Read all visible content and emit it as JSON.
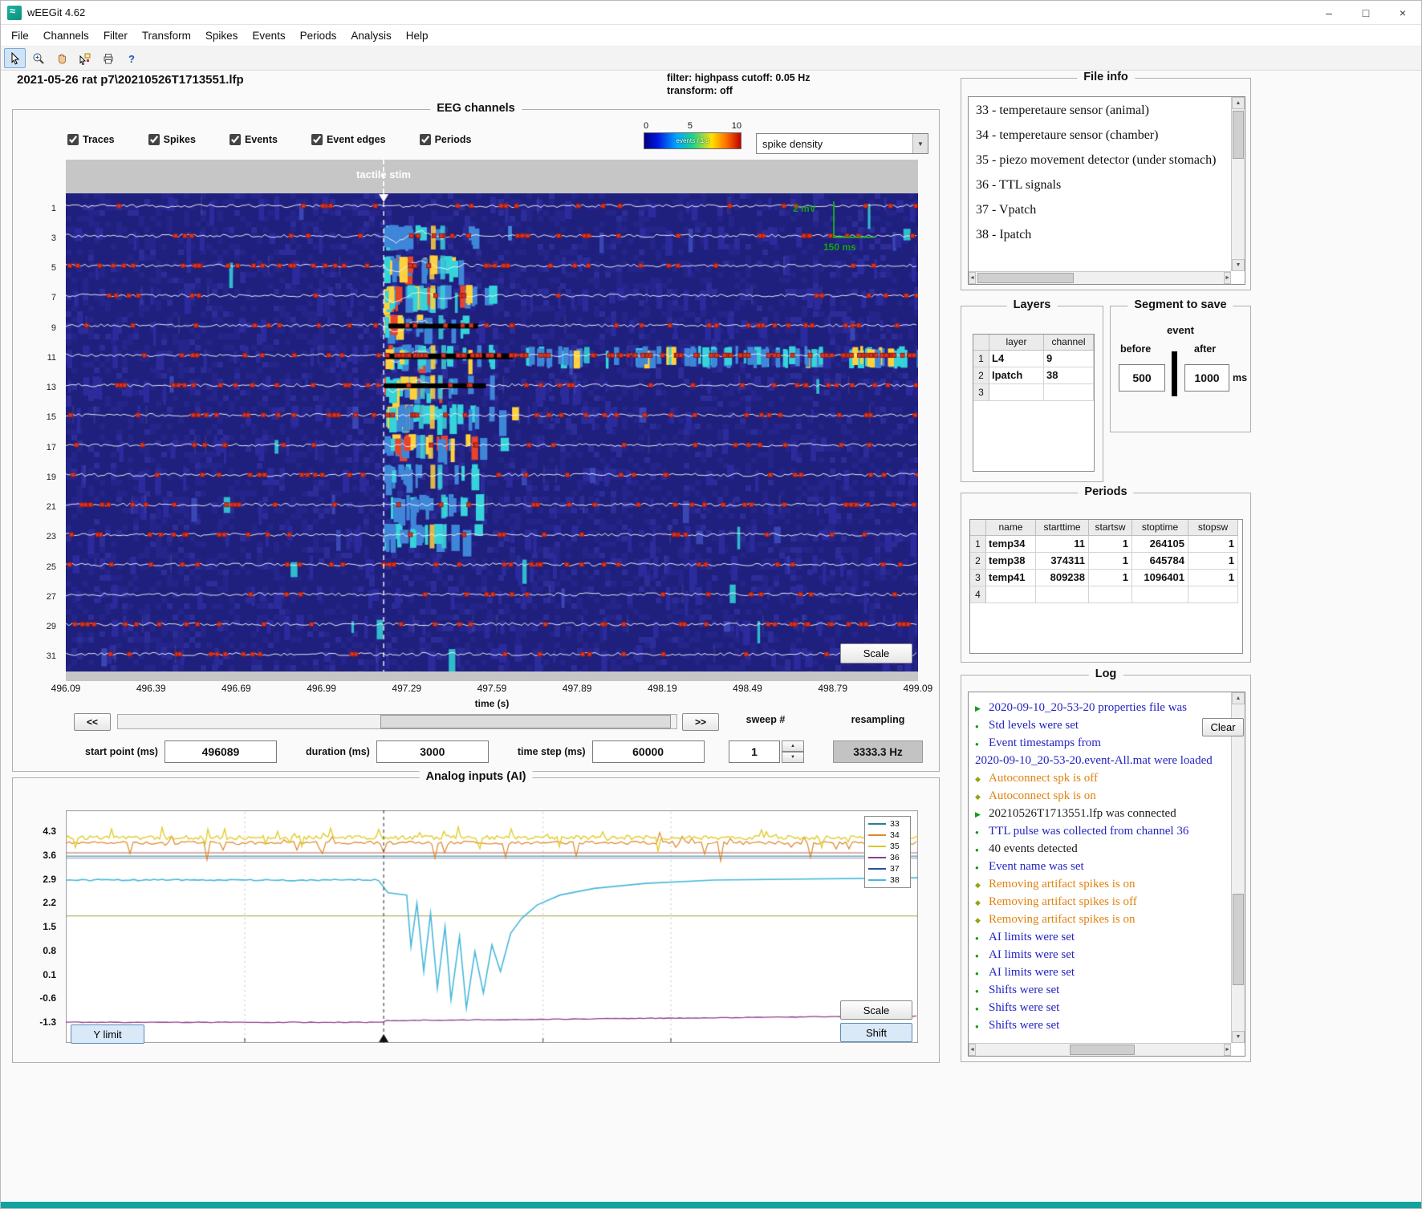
{
  "titlebar": {
    "title": "wEEGit 4.62",
    "minimize": "–",
    "maximize": "□",
    "close": "×"
  },
  "menubar": {
    "items": [
      "File",
      "Channels",
      "Filter",
      "Transform",
      "Spikes",
      "Events",
      "Periods",
      "Analysis",
      "Help"
    ]
  },
  "toolbar": {
    "icons": [
      "cursor-icon",
      "zoom-in-icon",
      "hand-icon",
      "datatip-icon",
      "print-icon",
      "help-icon"
    ]
  },
  "eeg": {
    "panel_title": "EEG channels",
    "file_label": "2021-05-26 rat p7\\20210526T1713551.lfp",
    "filter_line1": "filter: highpass cutoff: 0.05 Hz",
    "filter_line2": "transform: off",
    "checkboxes": [
      {
        "label": "Traces",
        "checked": true
      },
      {
        "label": "Spikes",
        "checked": true
      },
      {
        "label": "Events",
        "checked": true
      },
      {
        "label": "Event edges",
        "checked": true
      },
      {
        "label": "Periods",
        "checked": true
      }
    ],
    "colorbar": {
      "ticks": [
        "0",
        "5",
        "10"
      ],
      "label": "events / 1 s"
    },
    "display_mode": "spike density",
    "stim_label": "tactile stim",
    "scalebar": {
      "voltage": "2 mV",
      "time": "150 ms"
    },
    "channels": [
      "1",
      "3",
      "5",
      "7",
      "9",
      "11",
      "13",
      "15",
      "17",
      "19",
      "21",
      "23",
      "25",
      "27",
      "29",
      "31"
    ],
    "time_ticks": [
      "496.09",
      "496.39",
      "496.69",
      "496.99",
      "497.29",
      "497.59",
      "497.89",
      "498.19",
      "498.49",
      "498.79",
      "499.09"
    ],
    "time_label": "time (s)",
    "scale_button": "Scale",
    "nav_left": "<<",
    "nav_right": ">>",
    "sweep_label": "sweep #",
    "resampling_label": "resampling",
    "fields": [
      {
        "label": "start point (ms)",
        "value": "496089"
      },
      {
        "label": "duration (ms)",
        "value": "3000"
      },
      {
        "label": "time step (ms)",
        "value": "60000"
      }
    ],
    "sweep_value": "1",
    "resampling_value": "3333.3 Hz"
  },
  "ai": {
    "panel_title": "Analog inputs (AI)",
    "y_ticks": [
      "4.3",
      "3.6",
      "2.9",
      "2.2",
      "1.5",
      "0.8",
      "0.1",
      "-0.6",
      "-1.3"
    ],
    "legend": [
      {
        "label": "33",
        "color": "#2d7f8c"
      },
      {
        "label": "34",
        "color": "#e0872a"
      },
      {
        "label": "35",
        "color": "#ddc72c"
      },
      {
        "label": "36",
        "color": "#8c3d8c"
      },
      {
        "label": "37",
        "color": "#2c4fa0"
      },
      {
        "label": "38",
        "color": "#49b8dc"
      }
    ],
    "y_limit_button": "Y limit",
    "scale_button": "Scale",
    "shift_button": "Shift"
  },
  "file_info": {
    "panel_title": "File info",
    "items": [
      "33 - temperetaure sensor (animal)",
      "34 - temperetaure sensor (chamber)",
      "35 - piezo movement detector (under stomach)",
      "36 - TTL signals",
      "37 - Vpatch",
      "38 - Ipatch"
    ]
  },
  "layers": {
    "panel_title": "Layers",
    "headers": [
      "layer",
      "channel"
    ],
    "rows": [
      {
        "n": "1",
        "layer": "L4",
        "channel": "9"
      },
      {
        "n": "2",
        "layer": "Ipatch",
        "channel": "38"
      },
      {
        "n": "3",
        "layer": "",
        "channel": ""
      }
    ]
  },
  "segment": {
    "panel_title": "Segment to save",
    "event_label": "event",
    "before_label": "before",
    "after_label": "after",
    "before_value": "500",
    "after_value": "1000",
    "ms_label": "ms"
  },
  "periods": {
    "panel_title": "Periods",
    "headers": [
      "name",
      "starttime",
      "startsw",
      "stoptime",
      "stopsw"
    ],
    "rows": [
      {
        "n": "1",
        "name": "temp34",
        "starttime": "11",
        "startsw": "1",
        "stoptime": "264105",
        "stopsw": "1"
      },
      {
        "n": "2",
        "name": "temp38",
        "starttime": "374311",
        "startsw": "1",
        "stoptime": "645784",
        "stopsw": "1"
      },
      {
        "n": "3",
        "name": "temp41",
        "starttime": "809238",
        "startsw": "1",
        "stoptime": "1096401",
        "stopsw": "1"
      },
      {
        "n": "4",
        "name": "",
        "starttime": "",
        "startsw": "",
        "stoptime": "",
        "stopsw": ""
      }
    ]
  },
  "log": {
    "panel_title": "Log",
    "clear_button": "Clear",
    "entries": [
      {
        "icon": "play",
        "color": "blue",
        "text": "2020-09-10_20-53-20 properties file was"
      },
      {
        "icon": "dot",
        "color": "blue",
        "text": "Std levels were set"
      },
      {
        "icon": "dot",
        "color": "blue",
        "text": "Event timestamps from"
      },
      {
        "icon": "none",
        "color": "blue",
        "text": "2020-09-10_20-53-20.event-All.mat were loaded"
      },
      {
        "icon": "diamond",
        "color": "orange",
        "text": "Autoconnect spk is off"
      },
      {
        "icon": "diamond",
        "color": "orange",
        "text": "Autoconnect spk is on"
      },
      {
        "icon": "play",
        "color": "black",
        "text": "20210526T1713551.lfp was connected"
      },
      {
        "icon": "dot",
        "color": "blue",
        "text": "TTL pulse was collected from channel 36"
      },
      {
        "icon": "dot",
        "color": "black",
        "text": "40 events detected"
      },
      {
        "icon": "dot",
        "color": "blue",
        "text": "Event name was set"
      },
      {
        "icon": "diamond",
        "color": "orange",
        "text": "Removing artifact spikes is on"
      },
      {
        "icon": "diamond",
        "color": "orange",
        "text": "Removing artifact spikes is off"
      },
      {
        "icon": "diamond",
        "color": "orange",
        "text": "Removing artifact spikes is on"
      },
      {
        "icon": "dot",
        "color": "blue",
        "text": "AI limits were set"
      },
      {
        "icon": "dot",
        "color": "blue",
        "text": "AI limits were set"
      },
      {
        "icon": "dot",
        "color": "blue",
        "text": "AI limits were set"
      },
      {
        "icon": "dot",
        "color": "blue",
        "text": "Shifts were set"
      },
      {
        "icon": "dot",
        "color": "blue",
        "text": "Shifts were set"
      },
      {
        "icon": "dot",
        "color": "blue",
        "text": "Shifts were set"
      }
    ]
  }
}
